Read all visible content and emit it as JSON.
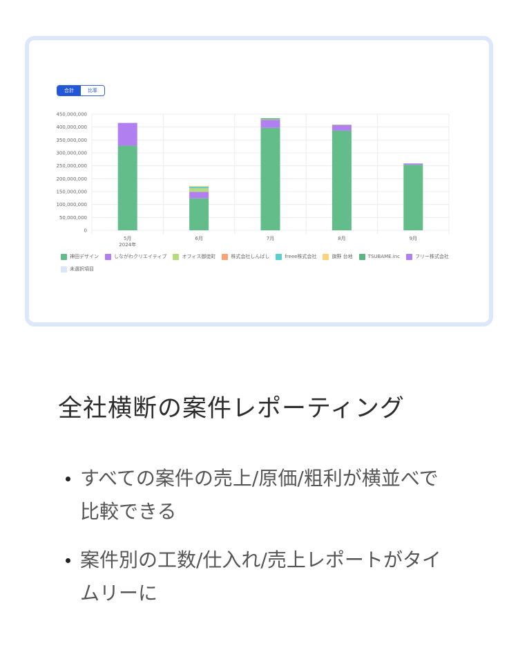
{
  "toggle": {
    "total_label": "合計",
    "ratio_label": "比率",
    "selected": "合計"
  },
  "chart_data": {
    "type": "bar",
    "stacked": true,
    "categories": [
      "5月",
      "6月",
      "7月",
      "8月",
      "9月"
    ],
    "category_sublabels": [
      "2024年",
      "",
      "",
      "",
      ""
    ],
    "ylim": [
      0,
      450000000
    ],
    "yticks": [
      "0",
      "50,000,000",
      "100,000,000",
      "150,000,000",
      "200,000,000",
      "250,000,000",
      "300,000,000",
      "350,000,000",
      "400,000,000",
      "450,000,000"
    ],
    "grid": true,
    "legend_position": "bottom",
    "series": [
      {
        "name": "神田デザイン",
        "color": "#63bd8b",
        "values": [
          328000000,
          124000000,
          397000000,
          386000000,
          254000000
        ]
      },
      {
        "name": "しながわクリエイティブ",
        "color": "#b27ff0",
        "values": [
          88000000,
          25000000,
          31000000,
          22000000,
          5000000
        ]
      },
      {
        "name": "オフィス御徒町",
        "color": "#b3dc7a",
        "values": [
          0,
          13000000,
          2000000,
          2000000,
          0
        ]
      },
      {
        "name": "株式会社しんばし",
        "color": "#f9a477",
        "values": [
          0,
          1000000,
          0,
          0,
          0
        ]
      },
      {
        "name": "freee株式会社",
        "color": "#5ad0d0",
        "values": [
          0,
          6000000,
          0,
          0,
          0
        ]
      },
      {
        "name": "旗野 台地",
        "color": "#fdd27c",
        "values": [
          0,
          3000000,
          0,
          0,
          0
        ]
      },
      {
        "name": "TSUBAME.inc",
        "color": "#5bb57f",
        "values": [
          0,
          0,
          4000000,
          0,
          0
        ]
      },
      {
        "name": "フリー株式会社",
        "color": "#b27ff0",
        "values": [
          0,
          0,
          0,
          0,
          0
        ]
      },
      {
        "name": "未選択項目",
        "color": "#dae5fb",
        "values": [
          0,
          0,
          0,
          0,
          0
        ]
      }
    ]
  },
  "heading": "全社横断の案件レポーティング",
  "bullets": [
    "すべての案件の売上/原価/粗利が横並べで比較できる",
    "案件別の工数/仕入れ/売上レポートがタイムリーに"
  ]
}
